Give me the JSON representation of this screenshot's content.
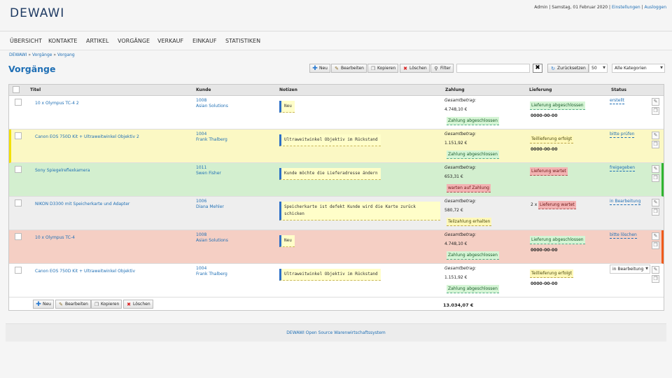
{
  "app": {
    "logo": "DEWAWI"
  },
  "topbar": {
    "user": "Admin",
    "sep": " | ",
    "date": "Samstag, 01 Februar 2020",
    "settings": "Einstellungen",
    "logout": "Ausloggen"
  },
  "nav": [
    "ÜBERSICHT",
    "KONTAKTE",
    "ARTIKEL",
    "VORGÄNGE",
    "VERKAUF",
    "EINKAUF",
    "STATISTIKEN"
  ],
  "breadcrumb": {
    "a": "DEWAWI",
    "b": "Vorgänge",
    "c": "Vorgang",
    "sep": " » "
  },
  "page": {
    "title": "Vorgänge"
  },
  "toolbar": {
    "new": "Neu",
    "edit": "Bearbeiten",
    "copy": "Kopieren",
    "delete": "Löschen",
    "filter": "Filter",
    "search_value": "",
    "clear": "✖",
    "reset": "Zurücksetzen",
    "per_page": "50",
    "category": "Alle Kategorien"
  },
  "table": {
    "headers": {
      "title": "Titel",
      "customer": "Kunde",
      "notes": "Notizen",
      "payment": "Zahlung",
      "delivery": "Lieferung",
      "status": "Status"
    },
    "total_label": "Gesamtbetrag:",
    "rows": [
      {
        "title": "10 x Olympus TC-4 2",
        "cust_no": "1008",
        "cust_name": "Asian Solutions",
        "note": "Neu",
        "amount": "4.748,10 €",
        "pay": "Zahlung abgeschlossen",
        "delivery": "Lieferung abgeschlossen",
        "delivery_date": "0000-00-00",
        "status": "erstellt"
      },
      {
        "title": "Canon EOS 750D Kit + Ultraweitwinkel Objektiv 2",
        "cust_no": "1004",
        "cust_name": "Frank Thalberg",
        "note": "Ultraweitwinkel Objektiv im Rückstand",
        "amount": "1.151,92 €",
        "pay": "Zahlung abgeschlossen",
        "delivery": "Teillieferung erfolgt",
        "delivery_date": "0000-00-00",
        "status": "bitte prüfen"
      },
      {
        "title": "Sony Spiegelreflexkamera",
        "cust_no": "1011",
        "cust_name": "Swen Fisher",
        "note": "Kunde möchte die Lieferadresse ändern",
        "amount": "653,31 €",
        "pay": "warten auf Zahlung",
        "delivery": "Lieferung wartet",
        "delivery_date": "",
        "status": "freigegeben"
      },
      {
        "title": "NIKON D3300 mit Speicherkarte und Adapter",
        "cust_no": "1006",
        "cust_name": "Diana Mehler",
        "note": "Speicherkarte ist defekt Kunde wird die Karte zurück schicken",
        "amount": "580,72 €",
        "pay": "Teilzahlung erhalten",
        "delivery_prefix": "2 x",
        "delivery": "Lieferung wartet",
        "delivery_date": "",
        "status": "in Bearbeitung"
      },
      {
        "title": "10 x Olympus TC-4",
        "cust_no": "1008",
        "cust_name": "Asian Solutions",
        "note": "Neu",
        "amount": "4.748,10 €",
        "pay": "Zahlung abgeschlossen",
        "delivery": "Lieferung abgeschlossen",
        "delivery_date": "0000-00-00",
        "status": "bitte löschen"
      },
      {
        "title": "Canon EOS 750D Kit + Ultraweitwinkel Objektiv",
        "cust_no": "1004",
        "cust_name": "Frank Thalberg",
        "note": "Ultraweitwinkel Objektiv im Rückstand",
        "amount": "1.151,92 €",
        "pay": "Zahlung abgeschlossen",
        "delivery": "Teillieferung erfolgt",
        "delivery_date": "0000-00-00",
        "status": "in Bearbeitung"
      }
    ],
    "grand_total": "13.034,07 €"
  },
  "footer": {
    "text": "DEWAWI Open Source Warenwirtschaftssystem"
  },
  "colors": {
    "link": "#1f6fb5",
    "row_yellow": "#fbf8c4",
    "row_green": "#d3efcf",
    "row_red": "#f5cfc4",
    "row_grey": "#eeeeee"
  },
  "icons": {
    "new": "plus-icon",
    "edit": "pencil-icon",
    "copy": "copy-icon",
    "delete": "delete-icon",
    "filter": "filter-icon",
    "reset": "reset-icon"
  }
}
